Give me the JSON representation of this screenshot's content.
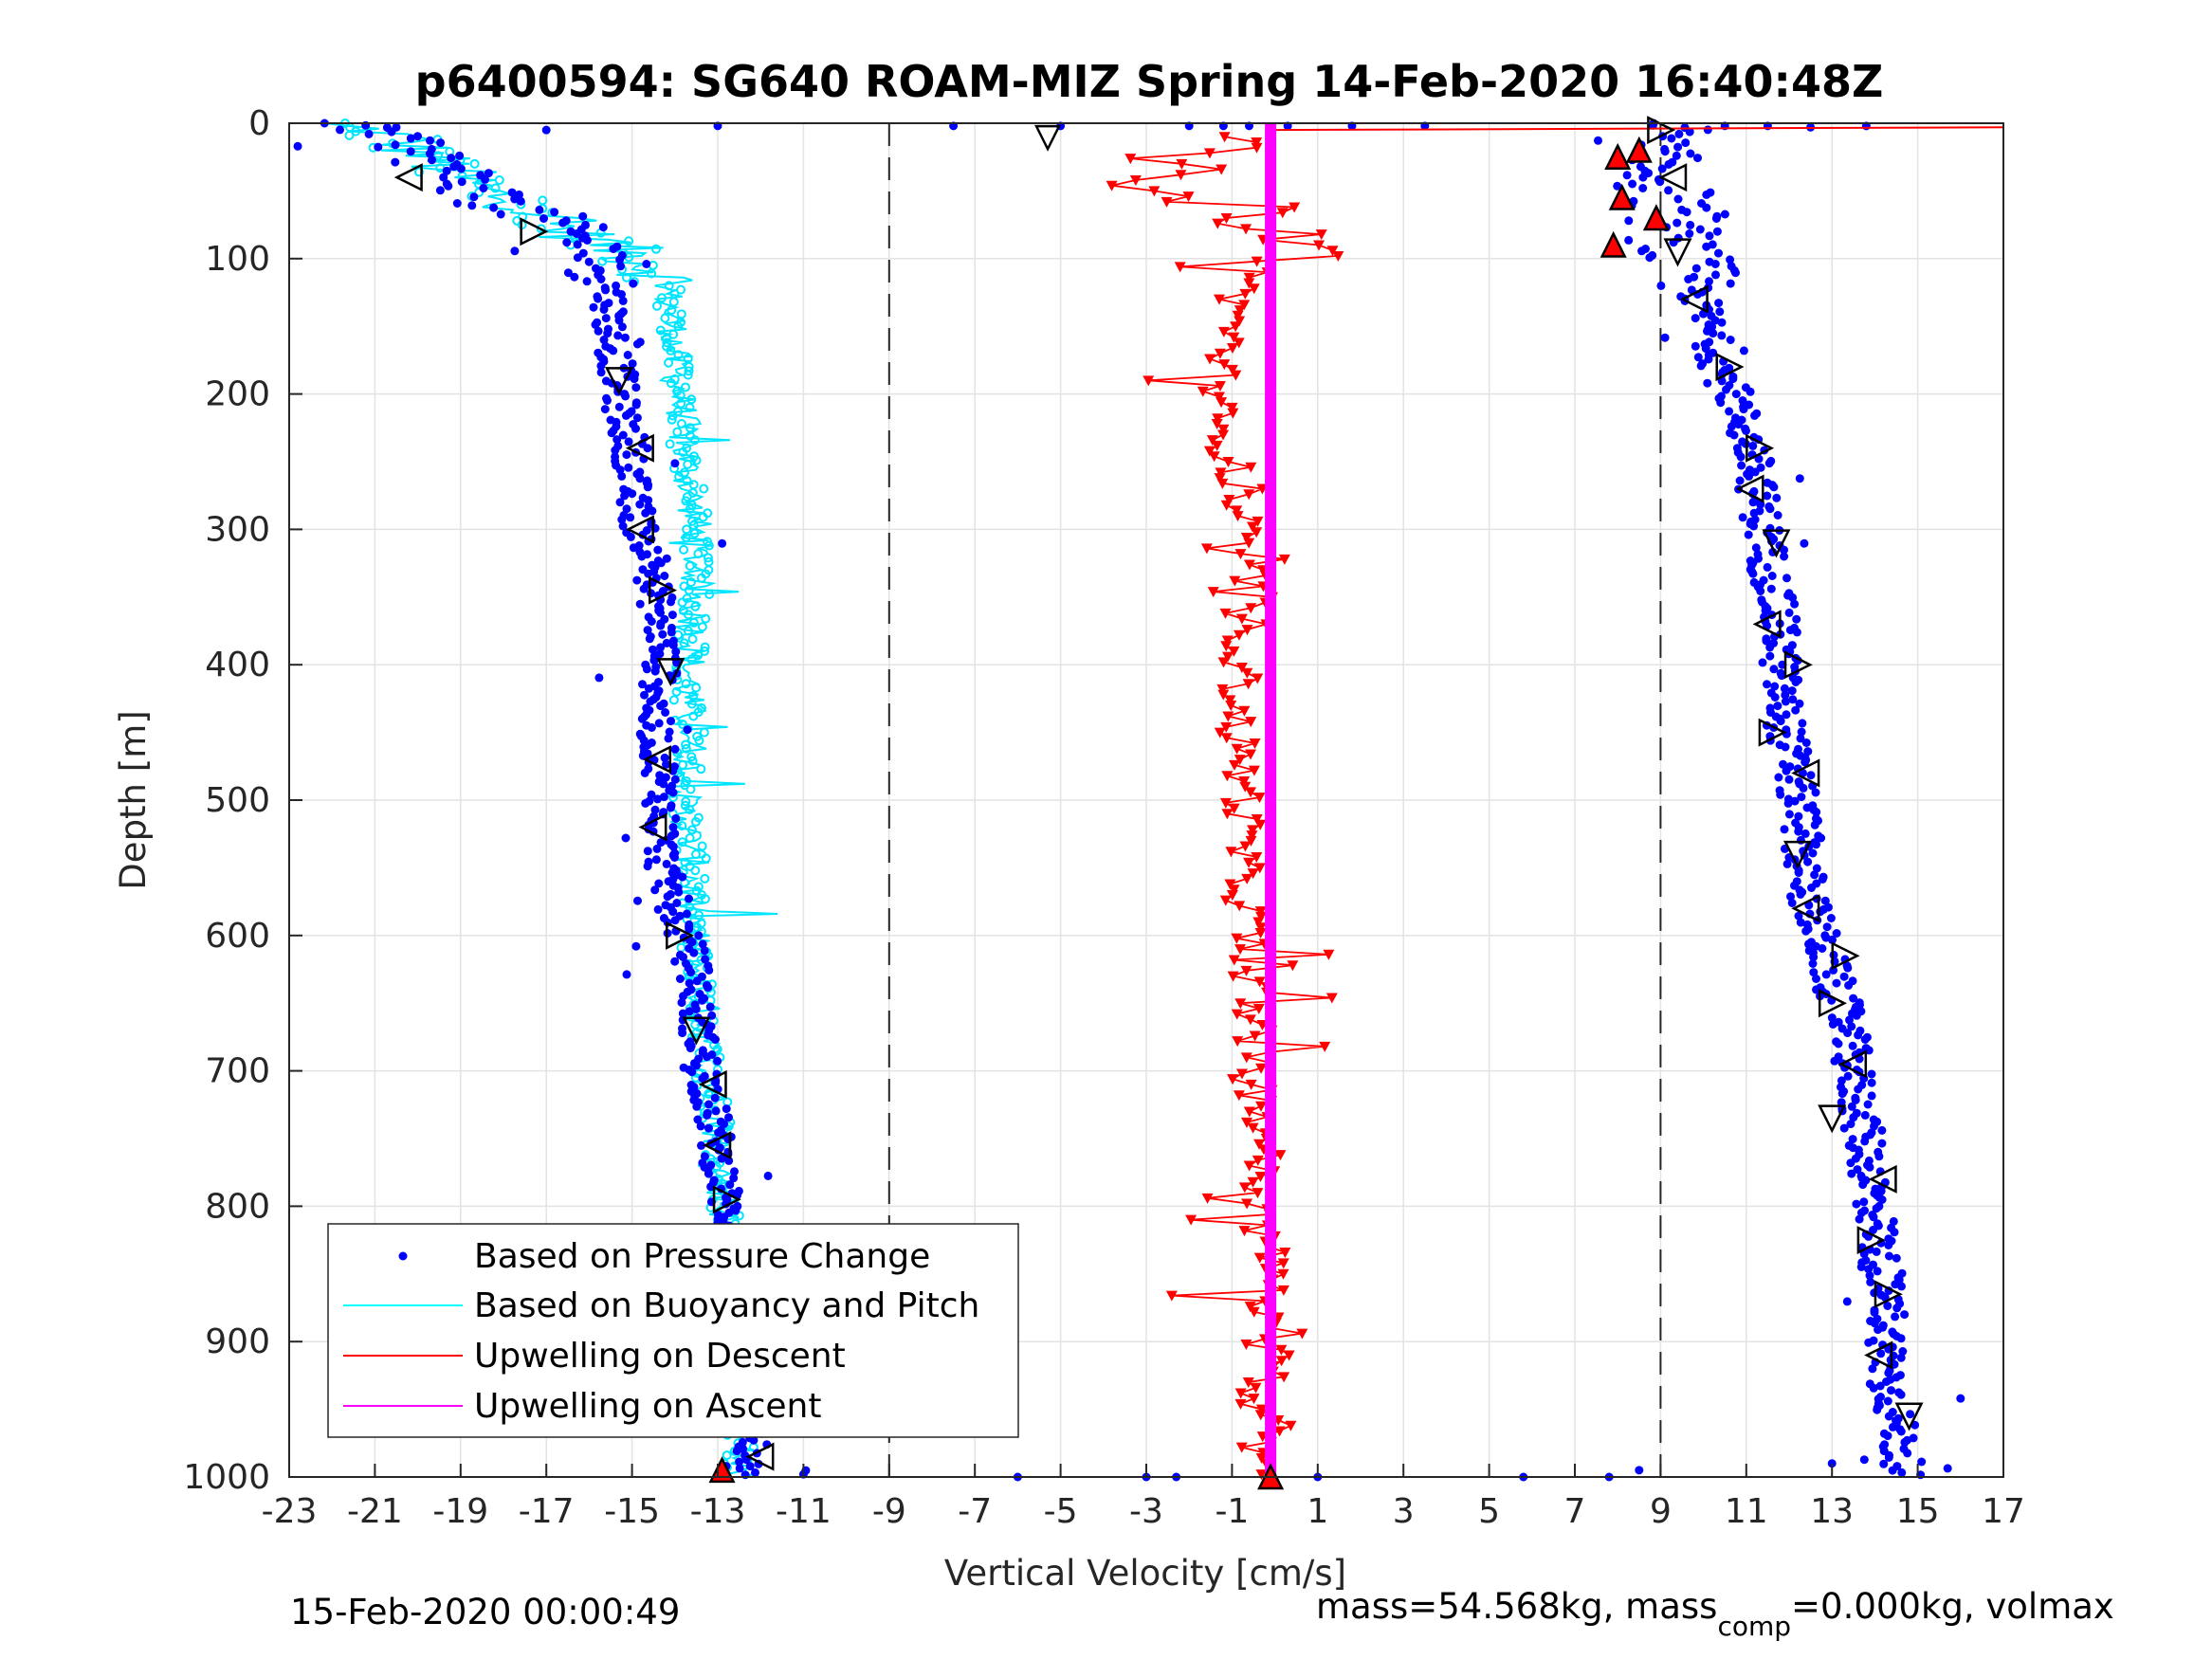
{
  "chart_data": {
    "type": "scatter",
    "title": "p6400594: SG640 ROAM-MIZ Spring 14-Feb-2020 16:40:48Z",
    "xlabel": "Vertical Velocity [cm/s]",
    "ylabel": "Depth [m]",
    "xlim": [
      -23,
      17
    ],
    "ylim": [
      0,
      1000
    ],
    "y_reversed": true,
    "grid": true,
    "x_ticks": [
      "-23",
      "-21",
      "-19",
      "-17",
      "-15",
      "-13",
      "-11",
      "-9",
      "-7",
      "-5",
      "-3",
      "-1",
      "1",
      "3",
      "5",
      "7",
      "9",
      "11",
      "13",
      "15",
      "17"
    ],
    "y_ticks": [
      "0",
      "100",
      "200",
      "300",
      "400",
      "500",
      "600",
      "700",
      "800",
      "900",
      "1000"
    ],
    "vertical_dashed_lines": [
      -9,
      9
    ],
    "legend": {
      "position": "bottom-left",
      "entries": [
        {
          "label": "Based on Pressure Change",
          "color": "#0000ff",
          "style": "dot"
        },
        {
          "label": "Based on Buoyancy and Pitch",
          "color": "#00ffff",
          "style": "line"
        },
        {
          "label": "Upwelling on Descent",
          "color": "#ff0000",
          "style": "line"
        },
        {
          "label": "Upwelling on Ascent",
          "color": "#ff00ff",
          "style": "line"
        }
      ]
    },
    "series": [
      {
        "name": "Based on Pressure Change (descent)",
        "color": "#0000ff",
        "depth": [
          0,
          5,
          10,
          15,
          20,
          30,
          40,
          50,
          60,
          70,
          80,
          90,
          100,
          110,
          120,
          130,
          150,
          170,
          190,
          200,
          220,
          240,
          260,
          280,
          300,
          320,
          340,
          360,
          380,
          400,
          420,
          440,
          460,
          480,
          500,
          520,
          540,
          560,
          580,
          600,
          620,
          640,
          660,
          680,
          700,
          720,
          740,
          760,
          780,
          800,
          820,
          840,
          860,
          880,
          900,
          920,
          940,
          960,
          980,
          1000
        ],
        "velocity": [
          -22,
          -21,
          -21,
          -20,
          -20,
          -19.5,
          -19,
          -18.5,
          -18,
          -17,
          -16.5,
          -16,
          -15.5,
          -15.5,
          -15.5,
          -15.5,
          -15.5,
          -15.4,
          -15.3,
          -15.3,
          -15.2,
          -15,
          -15,
          -15,
          -14.8,
          -14.5,
          -14.5,
          -14.4,
          -14.3,
          -14.3,
          -14.4,
          -14.5,
          -14.4,
          -14.3,
          -14.3,
          -14.3,
          -14.3,
          -14.2,
          -14,
          -13.8,
          -13.6,
          -13.5,
          -13.5,
          -13.4,
          -13.3,
          -13.2,
          -13.1,
          -13,
          -12.9,
          -12.8,
          -12.7,
          -12.7,
          -12.6,
          -12.5,
          -12.5,
          -12.4,
          -12.3,
          -12.3,
          -12.2,
          -12.5
        ]
      },
      {
        "name": "Based on Buoyancy and Pitch",
        "color": "#00ffff",
        "depth": [
          0,
          5,
          10,
          20,
          30,
          40,
          50,
          60,
          70,
          80,
          90,
          100,
          110,
          120,
          140,
          160,
          180,
          200,
          220,
          240,
          260,
          280,
          300,
          340,
          380,
          420,
          460,
          500,
          540,
          580,
          620,
          660,
          700,
          740,
          780,
          820,
          860,
          900,
          940,
          980,
          1000
        ],
        "velocity": [
          -22.5,
          -21,
          -20.5,
          -20,
          -19.5,
          -19,
          -18.5,
          -17.5,
          -17,
          -16.5,
          -15.5,
          -14.8,
          -14.3,
          -14.2,
          -14.1,
          -14,
          -14,
          -13.9,
          -13.8,
          -13.8,
          -13.7,
          -13.6,
          -13.5,
          -13.5,
          -13.6,
          -13.7,
          -13.6,
          -13.8,
          -13.6,
          -13.6,
          -13.5,
          -13.3,
          -13.2,
          -13.0,
          -12.9,
          -12.8,
          -12.7,
          -12.6,
          -12.6,
          -12.5,
          -12.6
        ]
      },
      {
        "name": "Based on Pressure Change (ascent)",
        "color": "#0000ff",
        "depth": [
          0,
          10,
          20,
          30,
          40,
          50,
          60,
          70,
          80,
          90,
          100,
          110,
          120,
          130,
          150,
          170,
          190,
          200,
          220,
          240,
          260,
          280,
          300,
          320,
          340,
          360,
          380,
          400,
          420,
          440,
          460,
          480,
          500,
          520,
          540,
          560,
          580,
          600,
          620,
          640,
          660,
          680,
          700,
          720,
          740,
          760,
          780,
          800,
          820,
          840,
          860,
          880,
          900,
          920,
          940,
          960,
          980,
          1000
        ],
        "velocity": [
          8.8,
          8.6,
          8.7,
          8.8,
          9,
          9.1,
          9.2,
          9.3,
          9.3,
          9.4,
          9.5,
          9.7,
          9.8,
          9.9,
          10.1,
          10.3,
          10.5,
          10.7,
          10.9,
          11.1,
          11.2,
          11.3,
          11.4,
          11.5,
          11.6,
          11.7,
          11.8,
          11.8,
          11.8,
          11.9,
          12,
          12.1,
          12.2,
          12.3,
          12.3,
          12.4,
          12.5,
          12.7,
          12.9,
          13.1,
          13.3,
          13.4,
          13.5,
          13.6,
          13.7,
          13.8,
          13.9,
          14,
          14.1,
          14.1,
          14.2,
          14.3,
          14.3,
          14.3,
          14.4,
          14.5,
          14.6,
          14.7
        ]
      },
      {
        "name": "Upwelling on Descent",
        "color": "#ff0000",
        "depth": [
          10,
          20,
          30,
          40,
          50,
          60,
          70,
          80,
          90,
          100,
          120,
          150,
          180,
          200,
          250,
          300,
          350,
          400,
          450,
          500,
          550,
          600,
          650,
          700,
          750,
          800,
          850,
          900,
          920,
          940,
          960,
          980,
          1000
        ],
        "velocity": [
          -1.5,
          -2,
          -2.5,
          -3,
          -1.5,
          -1,
          -0.5,
          0,
          1,
          0.3,
          -0.8,
          -1,
          -1.2,
          -1.5,
          -1,
          -0.8,
          -0.5,
          -0.8,
          -0.9,
          -0.7,
          -0.8,
          -0.6,
          -0.5,
          -0.5,
          -0.2,
          -0.5,
          0,
          -0.5,
          0.5,
          -1,
          0.5,
          -0.5,
          0
        ]
      },
      {
        "name": "Upwelling on Ascent",
        "color": "#ff00ff",
        "depth": [
          0,
          1000
        ],
        "velocity": [
          -0.1,
          -0.1
        ]
      }
    ],
    "markers": {
      "descent_triangles": [
        {
          "depth": 40,
          "velocity": -20.2
        },
        {
          "depth": 80,
          "velocity": -17.3
        },
        {
          "depth": 190,
          "velocity": -15.3
        },
        {
          "depth": 240,
          "velocity": -14.8
        },
        {
          "depth": 300,
          "velocity": -14.8
        },
        {
          "depth": 345,
          "velocity": -14.3
        },
        {
          "depth": 405,
          "velocity": -14.1
        },
        {
          "depth": 470,
          "velocity": -14.4
        },
        {
          "depth": 520,
          "velocity": -14.5
        },
        {
          "depth": 600,
          "velocity": -13.9
        },
        {
          "depth": 670,
          "velocity": -13.5
        },
        {
          "depth": 710,
          "velocity": -13.1
        },
        {
          "depth": 755,
          "velocity": -13
        },
        {
          "depth": 795,
          "velocity": -12.8
        },
        {
          "depth": 840,
          "velocity": -12.5
        },
        {
          "depth": 890,
          "velocity": -12.6
        },
        {
          "depth": 985,
          "velocity": -12
        }
      ],
      "ascent_triangles": [
        {
          "depth": 5,
          "velocity": 9
        },
        {
          "depth": 40,
          "velocity": 9.3
        },
        {
          "depth": 95,
          "velocity": 9.4
        },
        {
          "depth": 130,
          "velocity": 9.8
        },
        {
          "depth": 180,
          "velocity": 10.6
        },
        {
          "depth": 240,
          "velocity": 11.3
        },
        {
          "depth": 270,
          "velocity": 11.1
        },
        {
          "depth": 310,
          "velocity": 11.7
        },
        {
          "depth": 370,
          "velocity": 11.5
        },
        {
          "depth": 400,
          "velocity": 12.2
        },
        {
          "depth": 450,
          "velocity": 11.6
        },
        {
          "depth": 480,
          "velocity": 12.4
        },
        {
          "depth": 540,
          "velocity": 12.2
        },
        {
          "depth": 580,
          "velocity": 12.4
        },
        {
          "depth": 615,
          "velocity": 13.3
        },
        {
          "depth": 650,
          "velocity": 13
        },
        {
          "depth": 695,
          "velocity": 13.5
        },
        {
          "depth": 735,
          "velocity": 13
        },
        {
          "depth": 780,
          "velocity": 14.2
        },
        {
          "depth": 825,
          "velocity": 13.9
        },
        {
          "depth": 865,
          "velocity": 14.3
        },
        {
          "depth": 910,
          "velocity": 14.1
        },
        {
          "depth": 955,
          "velocity": 14.8
        }
      ],
      "red_triangles": [
        {
          "depth": 20,
          "velocity": 8.5
        },
        {
          "depth": 25,
          "velocity": 8
        },
        {
          "depth": 55,
          "velocity": 8.1
        },
        {
          "depth": 70,
          "velocity": 8.9
        },
        {
          "depth": 90,
          "velocity": 7.9
        },
        {
          "depth": 995,
          "velocity": -12.9
        },
        {
          "depth": 1000,
          "velocity": -0.1
        }
      ],
      "open_triangle_top": {
        "depth": 5,
        "velocity": -5.3
      }
    }
  },
  "footer": {
    "date_left": "15-Feb-2020 00:00:49",
    "mass_prefix": "mass=54.568kg, mass",
    "mass_sub": "comp",
    "mass_suffix": "=0.000kg, volmax"
  }
}
